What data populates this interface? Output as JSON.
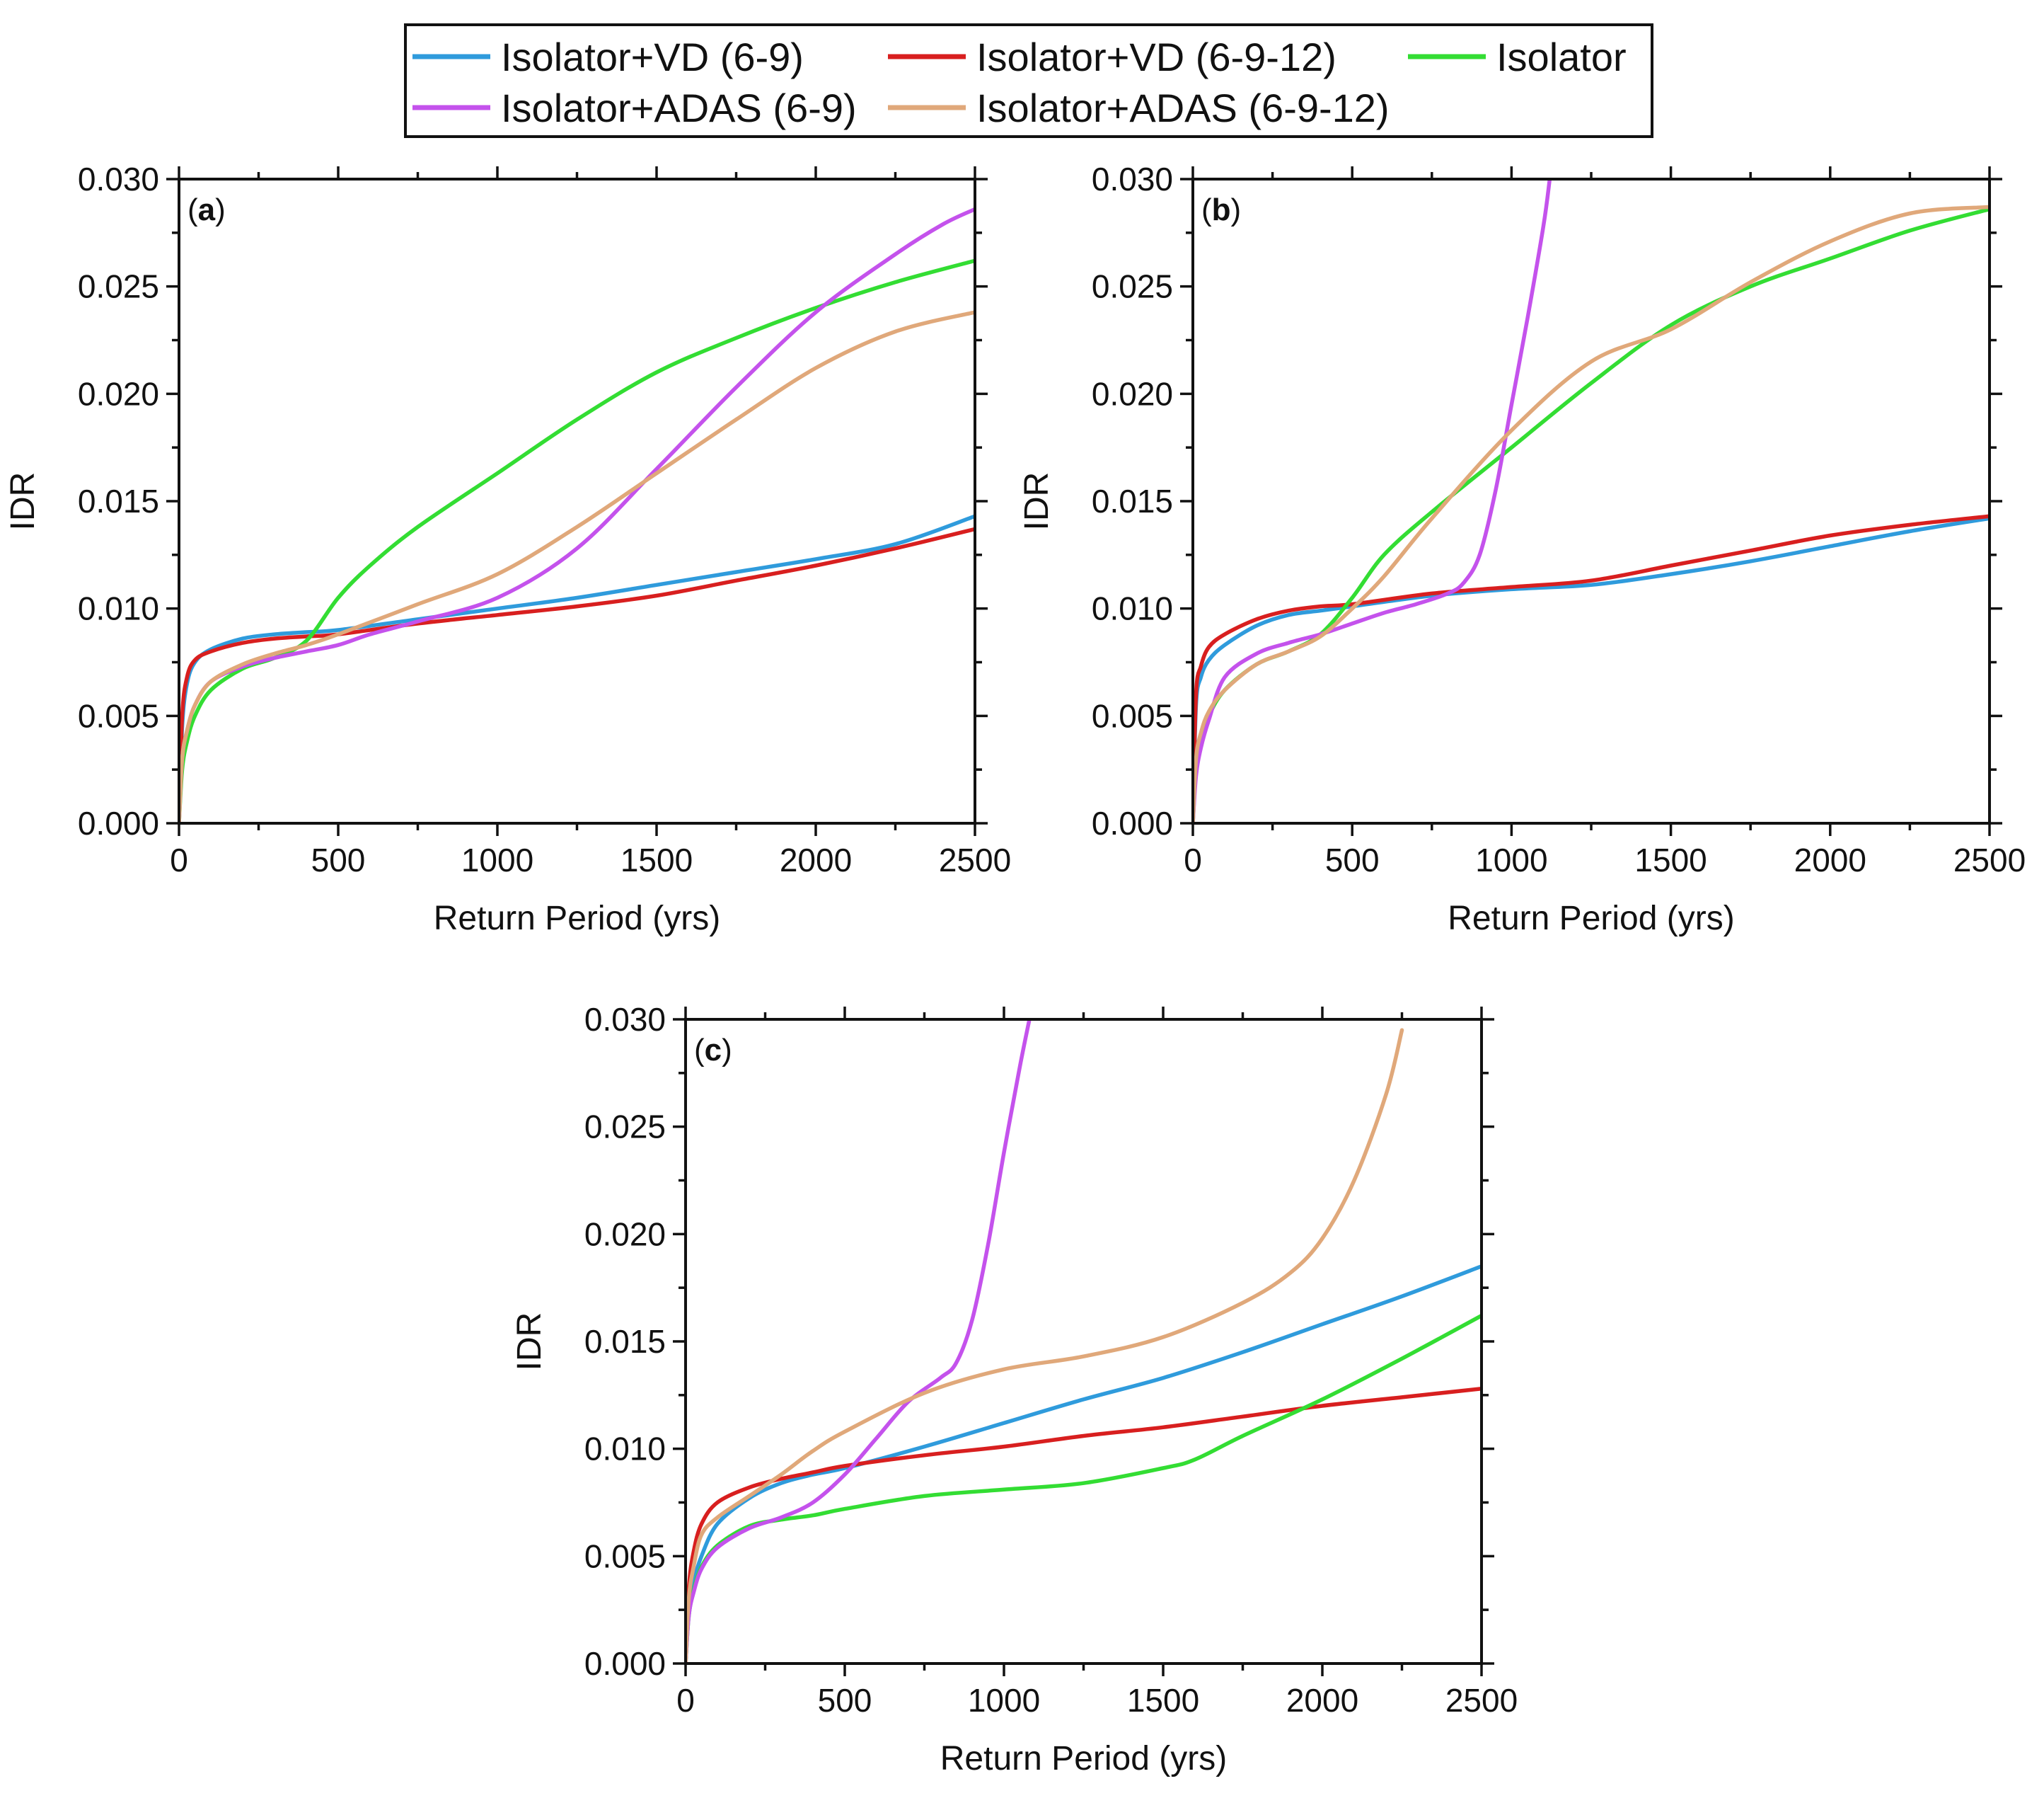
{
  "legend": {
    "entries": [
      {
        "key": "vd69",
        "label": "Isolator+VD (6-9)",
        "color": "#2f9bdc"
      },
      {
        "key": "vd6912",
        "label": "Isolator+VD (6-9-12)",
        "color": "#d81f1f"
      },
      {
        "key": "iso",
        "label": "Isolator",
        "color": "#33dd33"
      },
      {
        "key": "adas69",
        "label": "Isolator+ADAS (6-9)",
        "color": "#c452ec"
      },
      {
        "key": "adas6912",
        "label": "Isolator+ADAS (6-9-12)",
        "color": "#e0a87a"
      }
    ]
  },
  "chart_data": [
    {
      "type": "line",
      "panel_label": "a",
      "xlabel": "Return Period (yrs)",
      "ylabel": "IDR",
      "xlim": [
        0,
        2500
      ],
      "ylim": [
        0,
        0.03
      ],
      "xticks": [
        "0",
        "500",
        "1000",
        "1500",
        "2000",
        "2500"
      ],
      "yticks": [
        "0.000",
        "0.005",
        "0.010",
        "0.015",
        "0.020",
        "0.025",
        "0.030"
      ],
      "series": [
        {
          "key": "vd69",
          "name": "Isolator+VD (6-9)",
          "x": [
            0,
            10,
            25,
            50,
            100,
            200,
            300,
            400,
            500,
            750,
            1000,
            1250,
            1500,
            1750,
            2000,
            2250,
            2500
          ],
          "y": [
            0,
            0.0045,
            0.0065,
            0.0075,
            0.0081,
            0.0086,
            0.0088,
            0.0089,
            0.009,
            0.0095,
            0.01,
            0.0105,
            0.0111,
            0.0117,
            0.0123,
            0.013,
            0.0143
          ]
        },
        {
          "key": "vd6912",
          "name": "Isolator+VD (6-9-12)",
          "x": [
            0,
            10,
            25,
            50,
            100,
            200,
            300,
            400,
            500,
            750,
            1000,
            1250,
            1500,
            1750,
            2000,
            2250,
            2500
          ],
          "y": [
            0,
            0.005,
            0.0068,
            0.0076,
            0.008,
            0.0084,
            0.0086,
            0.0087,
            0.0088,
            0.0093,
            0.0097,
            0.0101,
            0.0106,
            0.0113,
            0.012,
            0.0128,
            0.0137
          ]
        },
        {
          "key": "iso",
          "name": "Isolator",
          "x": [
            0,
            10,
            25,
            50,
            100,
            200,
            300,
            400,
            500,
            600,
            750,
            1000,
            1250,
            1500,
            1750,
            2000,
            2250,
            2500
          ],
          "y": [
            0,
            0.0025,
            0.0038,
            0.005,
            0.0062,
            0.0072,
            0.0077,
            0.0085,
            0.0105,
            0.012,
            0.0138,
            0.0163,
            0.0188,
            0.021,
            0.0226,
            0.024,
            0.0252,
            0.0262
          ]
        },
        {
          "key": "adas69",
          "name": "Isolator+ADAS (6-9)",
          "x": [
            0,
            10,
            25,
            50,
            100,
            200,
            300,
            400,
            500,
            600,
            750,
            1000,
            1250,
            1500,
            1750,
            2000,
            2250,
            2400,
            2500
          ],
          "y": [
            0,
            0.003,
            0.0043,
            0.0055,
            0.0066,
            0.0073,
            0.0077,
            0.008,
            0.0083,
            0.0088,
            0.0094,
            0.0105,
            0.0128,
            0.0165,
            0.0203,
            0.0238,
            0.0265,
            0.0279,
            0.0286
          ]
        },
        {
          "key": "adas6912",
          "name": "Isolator+ADAS (6-9-12)",
          "x": [
            0,
            10,
            25,
            50,
            100,
            200,
            300,
            400,
            500,
            750,
            1000,
            1250,
            1500,
            1750,
            2000,
            2250,
            2500
          ],
          "y": [
            0,
            0.003,
            0.0043,
            0.0055,
            0.0066,
            0.0074,
            0.0079,
            0.0083,
            0.0088,
            0.0102,
            0.0116,
            0.0138,
            0.0163,
            0.0188,
            0.0212,
            0.0229,
            0.0238
          ]
        }
      ]
    },
    {
      "type": "line",
      "panel_label": "b",
      "xlabel": "Return Period (yrs)",
      "ylabel": "IDR",
      "xlim": [
        0,
        2500
      ],
      "ylim": [
        0,
        0.03
      ],
      "xticks": [
        "0",
        "500",
        "1000",
        "1500",
        "2000",
        "2500"
      ],
      "yticks": [
        "0.000",
        "0.005",
        "0.010",
        "0.015",
        "0.020",
        "0.025",
        "0.030"
      ],
      "series": [
        {
          "key": "vd69",
          "name": "Isolator+VD (6-9)",
          "x": [
            0,
            10,
            25,
            50,
            100,
            200,
            300,
            400,
            500,
            750,
            1000,
            1250,
            1500,
            1750,
            2000,
            2250,
            2500
          ],
          "y": [
            0,
            0.0055,
            0.0068,
            0.0076,
            0.0083,
            0.0092,
            0.0097,
            0.0099,
            0.0101,
            0.0106,
            0.0109,
            0.0111,
            0.0116,
            0.0122,
            0.0129,
            0.0136,
            0.0142
          ]
        },
        {
          "key": "vd6912",
          "name": "Isolator+VD (6-9-12)",
          "x": [
            0,
            10,
            25,
            50,
            100,
            200,
            300,
            400,
            500,
            750,
            1000,
            1250,
            1500,
            1750,
            2000,
            2250,
            2500
          ],
          "y": [
            0,
            0.006,
            0.0073,
            0.0082,
            0.0088,
            0.0095,
            0.0099,
            0.0101,
            0.0102,
            0.0107,
            0.011,
            0.0113,
            0.012,
            0.0127,
            0.0134,
            0.0139,
            0.0143
          ]
        },
        {
          "key": "iso",
          "name": "Isolator",
          "x": [
            0,
            10,
            25,
            50,
            100,
            200,
            300,
            400,
            500,
            600,
            750,
            1000,
            1250,
            1500,
            1750,
            2000,
            2250,
            2500
          ],
          "y": [
            0,
            0.0025,
            0.0038,
            0.005,
            0.0062,
            0.0074,
            0.008,
            0.0088,
            0.0105,
            0.0125,
            0.0145,
            0.0175,
            0.0205,
            0.0232,
            0.025,
            0.0263,
            0.0276,
            0.0286
          ]
        },
        {
          "key": "adas69",
          "name": "Isolator+ADAS (6-9)",
          "x": [
            0,
            10,
            25,
            50,
            100,
            200,
            300,
            400,
            500,
            600,
            700,
            800,
            850,
            900,
            950,
            1000,
            1050,
            1100,
            1120
          ],
          "y": [
            0,
            0.0022,
            0.0035,
            0.0048,
            0.0068,
            0.0079,
            0.0084,
            0.0088,
            0.0093,
            0.0098,
            0.0102,
            0.0107,
            0.0112,
            0.0125,
            0.0155,
            0.0195,
            0.0235,
            0.0278,
            0.03
          ]
        },
        {
          "key": "adas6912",
          "name": "Isolator+ADAS (6-9-12)",
          "x": [
            0,
            10,
            25,
            50,
            100,
            200,
            300,
            400,
            500,
            600,
            750,
            1000,
            1250,
            1500,
            1750,
            2000,
            2250,
            2500
          ],
          "y": [
            0,
            0.003,
            0.0042,
            0.0052,
            0.0062,
            0.0074,
            0.008,
            0.0087,
            0.01,
            0.0115,
            0.0142,
            0.0183,
            0.0215,
            0.023,
            0.0252,
            0.0271,
            0.0284,
            0.0287
          ]
        }
      ]
    },
    {
      "type": "line",
      "panel_label": "c",
      "xlabel": "Return Period (yrs)",
      "ylabel": "IDR",
      "xlim": [
        0,
        2500
      ],
      "ylim": [
        0,
        0.03
      ],
      "xticks": [
        "0",
        "500",
        "1000",
        "1500",
        "2000",
        "2500"
      ],
      "yticks": [
        "0.000",
        "0.005",
        "0.010",
        "0.015",
        "0.020",
        "0.025",
        "0.030"
      ],
      "series": [
        {
          "key": "vd69",
          "name": "Isolator+VD (6-9)",
          "x": [
            0,
            10,
            25,
            50,
            100,
            200,
            300,
            400,
            500,
            750,
            1000,
            1250,
            1500,
            1750,
            2000,
            2250,
            2500
          ],
          "y": [
            0,
            0.0025,
            0.0038,
            0.005,
            0.0065,
            0.0077,
            0.0084,
            0.0088,
            0.0091,
            0.0101,
            0.0112,
            0.0123,
            0.0133,
            0.0145,
            0.0158,
            0.0171,
            0.0185
          ]
        },
        {
          "key": "vd6912",
          "name": "Isolator+VD (6-9-12)",
          "x": [
            0,
            10,
            25,
            50,
            100,
            200,
            300,
            400,
            500,
            750,
            1000,
            1250,
            1500,
            1750,
            2000,
            2250,
            2500
          ],
          "y": [
            0,
            0.0035,
            0.0052,
            0.0065,
            0.0075,
            0.0082,
            0.0086,
            0.0089,
            0.0092,
            0.0097,
            0.0101,
            0.0106,
            0.011,
            0.0115,
            0.012,
            0.0124,
            0.0128
          ]
        },
        {
          "key": "iso",
          "name": "Isolator",
          "x": [
            0,
            10,
            25,
            50,
            100,
            200,
            300,
            400,
            500,
            750,
            1000,
            1250,
            1500,
            1600,
            1750,
            2000,
            2250,
            2500
          ],
          "y": [
            0,
            0.0022,
            0.0034,
            0.0045,
            0.0055,
            0.0064,
            0.0067,
            0.0069,
            0.0072,
            0.0078,
            0.0081,
            0.0084,
            0.0091,
            0.0095,
            0.0106,
            0.0123,
            0.0142,
            0.0162
          ]
        },
        {
          "key": "adas69",
          "name": "Isolator+ADAS (6-9)",
          "x": [
            0,
            10,
            25,
            50,
            100,
            200,
            300,
            400,
            500,
            600,
            700,
            800,
            850,
            900,
            950,
            1000,
            1050,
            1080
          ],
          "y": [
            0,
            0.0022,
            0.0033,
            0.0044,
            0.0054,
            0.0063,
            0.0068,
            0.0075,
            0.0088,
            0.0105,
            0.0122,
            0.0133,
            0.014,
            0.016,
            0.0195,
            0.0238,
            0.0278,
            0.03
          ]
        },
        {
          "key": "adas6912",
          "name": "Isolator+ADAS (6-9-12)",
          "x": [
            0,
            10,
            25,
            50,
            100,
            200,
            300,
            400,
            500,
            750,
            1000,
            1250,
            1500,
            1750,
            1900,
            2000,
            2100,
            2200,
            2250
          ],
          "y": [
            0,
            0.003,
            0.0045,
            0.006,
            0.0068,
            0.0078,
            0.0088,
            0.0099,
            0.0108,
            0.0126,
            0.0137,
            0.0143,
            0.0152,
            0.0168,
            0.0182,
            0.0198,
            0.0225,
            0.0265,
            0.0295
          ]
        }
      ]
    }
  ]
}
